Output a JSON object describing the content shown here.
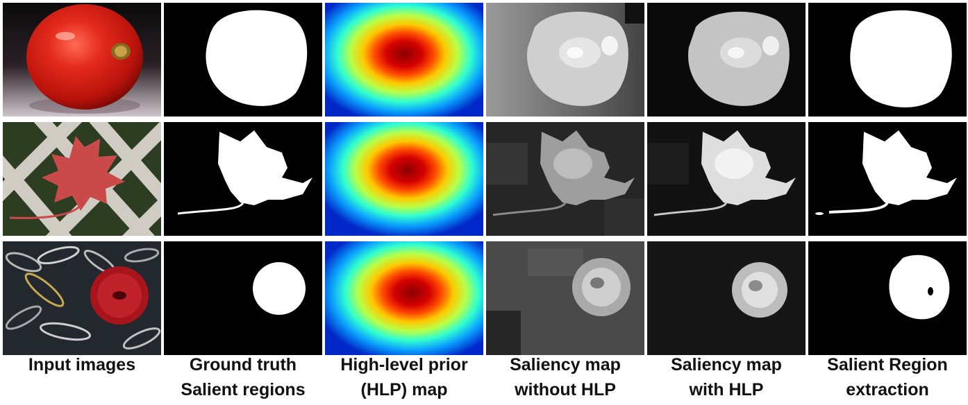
{
  "figure": {
    "columns": [
      {
        "id": "input",
        "label_lines": [
          "Input images"
        ]
      },
      {
        "id": "ground-truth",
        "label_lines": [
          "Ground truth",
          "Salient regions"
        ]
      },
      {
        "id": "hlp",
        "label_lines": [
          "High-level prior",
          "(HLP) map"
        ]
      },
      {
        "id": "saliency-without",
        "label_lines": [
          "Saliency map",
          "without HLP"
        ]
      },
      {
        "id": "saliency-with",
        "label_lines": [
          "Saliency map",
          "with HLP"
        ]
      },
      {
        "id": "extraction",
        "label_lines": [
          "Salient Region",
          "extraction"
        ]
      }
    ],
    "rows": [
      "tomato",
      "leaf",
      "button"
    ]
  }
}
